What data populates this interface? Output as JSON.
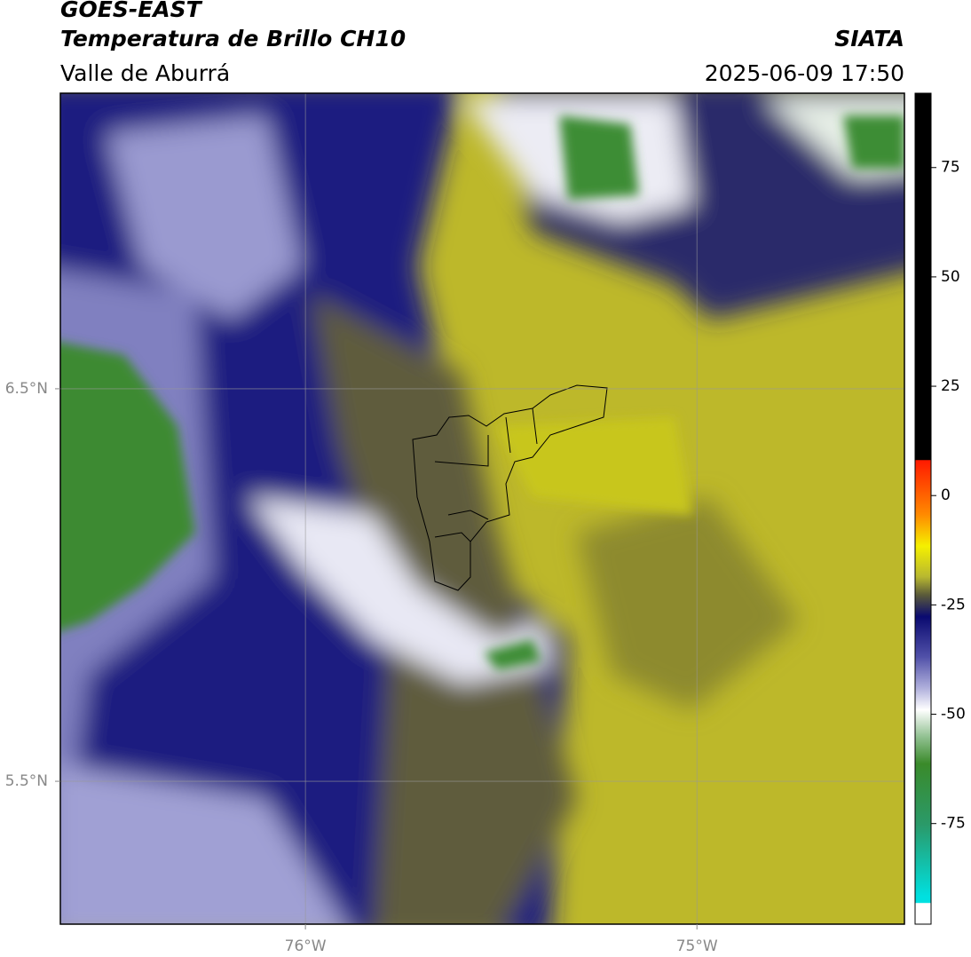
{
  "header": {
    "title": "GOES-EAST",
    "subtitle": "Temperatura de Brillo CH10",
    "region": "Valle de Aburrá",
    "source": "SIATA",
    "datetime": "2025-06-09 17:50"
  },
  "map": {
    "xlim": [
      -76.626,
      -74.47
    ],
    "ylim": [
      5.136,
      7.253
    ],
    "xticks": [
      {
        "value": -76,
        "label": "76°W"
      },
      {
        "value": -75,
        "label": "75°W"
      }
    ],
    "yticks": [
      {
        "value": 6.5,
        "label": "6.5°N"
      },
      {
        "value": 5.5,
        "label": "5.5°N"
      }
    ],
    "grid": true
  },
  "colorbar": {
    "lim": [
      -98,
      92
    ],
    "ticks": [
      75,
      50,
      25,
      0,
      -25,
      -50,
      -75
    ]
  }
}
